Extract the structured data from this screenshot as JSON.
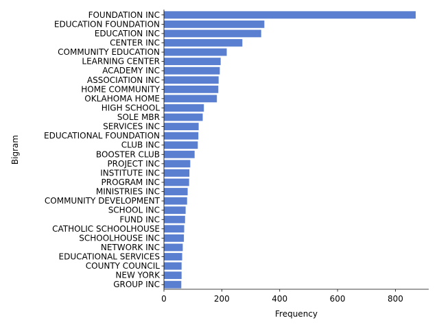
{
  "chart_data": {
    "type": "bar",
    "orientation": "horizontal",
    "categories": [
      "FOUNDATION INC",
      "EDUCATION FOUNDATION",
      "EDUCATION INC",
      "CENTER INC",
      "COMMUNITY EDUCATION",
      "LEARNING CENTER",
      "ACADEMY INC",
      "ASSOCIATION INC",
      "HOME COMMUNITY",
      "OKLAHOMA HOME",
      "HIGH SCHOOL",
      "SOLE MBR",
      "SERVICES INC",
      "EDUCATIONAL FOUNDATION",
      "CLUB INC",
      "BOOSTER CLUB",
      "PROJECT INC",
      "INSTITUTE INC",
      "PROGRAM INC",
      "MINISTRIES INC",
      "COMMUNITY DEVELOPMENT",
      "SCHOOL INC",
      "FUND INC",
      "CATHOLIC SCHOOLHOUSE",
      "SCHOOLHOUSE INC",
      "NETWORK INC",
      "EDUCATIONAL SERVICES",
      "COUNTY COUNCIL",
      "NEW YORK",
      "GROUP INC"
    ],
    "values": [
      870,
      347,
      336,
      271,
      217,
      196,
      193,
      189,
      188,
      183,
      138,
      134,
      120,
      119,
      117,
      106,
      91,
      88,
      87,
      82,
      80,
      75,
      73,
      70,
      69,
      65,
      63,
      61,
      61,
      60
    ],
    "xlabel": "Frequency",
    "ylabel": "Bigram",
    "xlim": [
      0,
      915
    ],
    "xticks": [
      0,
      200,
      400,
      600,
      800
    ],
    "bar_color": "#5a7fd0",
    "grid": false
  }
}
